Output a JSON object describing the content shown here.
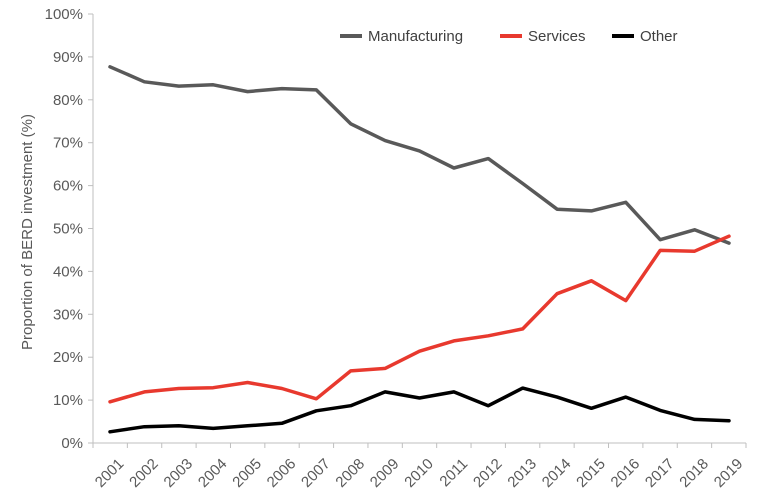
{
  "chart_data": {
    "type": "line",
    "title": "",
    "xlabel": "",
    "ylabel": "Proportion of BERD investment (%)",
    "ylim": [
      0,
      100
    ],
    "y_ticks": [
      "0%",
      "10%",
      "20%",
      "30%",
      "40%",
      "50%",
      "60%",
      "70%",
      "80%",
      "90%",
      "100%"
    ],
    "categories": [
      "2001",
      "2002",
      "2003",
      "2004",
      "2005",
      "2006",
      "2007",
      "2008",
      "2009",
      "2010",
      "2011",
      "2012",
      "2013",
      "2014",
      "2015",
      "2016",
      "2017",
      "2018",
      "2019"
    ],
    "grid": false,
    "legend_position": "top-right",
    "series": [
      {
        "name": "Manufacturing",
        "color": "#595959",
        "values": [
          87.7,
          84.2,
          83.2,
          83.5,
          81.9,
          82.6,
          82.3,
          74.4,
          70.5,
          68.1,
          64.1,
          66.3,
          60.5,
          54.5,
          54.1,
          56.1,
          47.4,
          49.7,
          46.6
        ]
      },
      {
        "name": "Services",
        "color": "#e8392e",
        "values": [
          9.6,
          11.9,
          12.7,
          12.9,
          14.1,
          12.7,
          10.3,
          16.8,
          17.4,
          21.4,
          23.8,
          25.0,
          26.6,
          34.8,
          37.8,
          33.2,
          44.9,
          44.7,
          48.2
        ]
      },
      {
        "name": "Other",
        "color": "#000000",
        "values": [
          2.6,
          3.8,
          4.0,
          3.4,
          4.0,
          4.6,
          7.5,
          8.7,
          11.9,
          10.5,
          11.9,
          8.7,
          12.8,
          10.7,
          8.1,
          10.7,
          7.6,
          5.5,
          5.2
        ]
      }
    ]
  }
}
